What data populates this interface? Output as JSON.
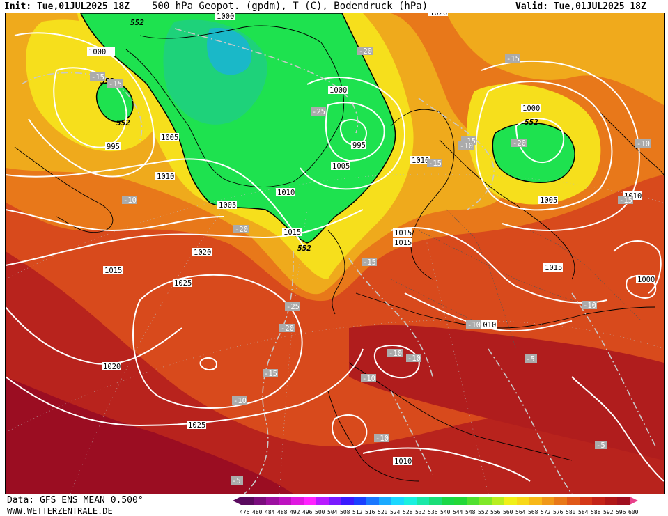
{
  "header": {
    "init": "Init: Tue,01JUL2025 18Z",
    "title": "500 hPa Geopot. (gpdm), T (C), Bodendruck (hPa)",
    "valid": "Valid: Tue,01JUL2025 18Z"
  },
  "footer": {
    "data_source": "Data: GFS ENS MEAN 0.500°",
    "website": "WWW.WETTERZENTRALE.DE"
  },
  "colors": {
    "low_geopot": "#1ee24f",
    "mid_yellow": "#f6df1c",
    "mid_orange": "#ec9b1c",
    "high_red": "#c2281d",
    "highest": "#9b0d22"
  },
  "scale": {
    "labels": [
      "476",
      "480",
      "484",
      "488",
      "492",
      "496",
      "500",
      "504",
      "508",
      "512",
      "516",
      "520",
      "524",
      "528",
      "532",
      "536",
      "540",
      "544",
      "548",
      "552",
      "556",
      "560",
      "564",
      "568",
      "572",
      "576",
      "580",
      "584",
      "588",
      "592",
      "596",
      "600"
    ],
    "colors": [
      "#5a0a5e",
      "#7a0d7d",
      "#9c10a0",
      "#be12c0",
      "#e018e0",
      "#ff22ff",
      "#b81aff",
      "#7a1aff",
      "#3a1aff",
      "#1a40ff",
      "#1a78ff",
      "#1aaaff",
      "#1ad8ff",
      "#1af0e0",
      "#1ae8a8",
      "#1ade78",
      "#1ad848",
      "#22d838",
      "#50e030",
      "#80e828",
      "#b8ee20",
      "#f0f018",
      "#f8d818",
      "#f8b818",
      "#f09818",
      "#e87818",
      "#e05818",
      "#d43818",
      "#c42418",
      "#b01818",
      "#a01020",
      "#e8408a"
    ]
  },
  "geopot_labels": [
    "552",
    "552",
    "552",
    "552",
    "552"
  ],
  "pressure_labels": [
    "1000",
    "1000",
    "1000",
    "1005",
    "1005",
    "1005",
    "1010",
    "1010",
    "1015",
    "1015",
    "1020",
    "1025",
    "1020",
    "1025",
    "995",
    "995",
    "1000",
    "1005",
    "1010",
    "1015",
    "1015",
    "1010",
    "1000",
    "1015",
    "1010",
    "1010",
    "1020"
  ],
  "temperature_labels": [
    "-20",
    "-15",
    "-15",
    "-15",
    "-25",
    "-15",
    "-20",
    "-20",
    "-15",
    "-15",
    "-10",
    "-15",
    "-25",
    "-20",
    "-15",
    "-10",
    "-10",
    "-10",
    "-10",
    "-10",
    "-10",
    "-5",
    "-10",
    "-5",
    "-5",
    "-10",
    "-10"
  ]
}
